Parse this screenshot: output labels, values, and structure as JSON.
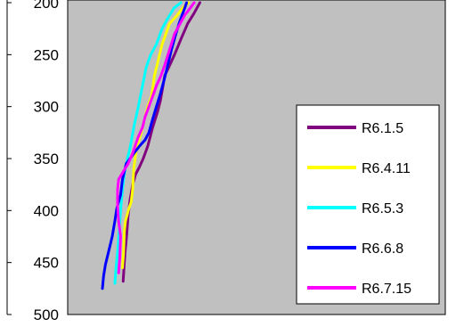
{
  "chart_data": {
    "type": "line",
    "title": "",
    "xlabel": "",
    "ylabel": "",
    "y_axis": {
      "reversed": true,
      "visible_range": [
        200,
        500
      ],
      "ticks": [
        200,
        250,
        300,
        350,
        400,
        450,
        500
      ],
      "tick_labels": [
        "200",
        "250",
        "300",
        "350",
        "400",
        "450",
        "500"
      ]
    },
    "x_axis": {
      "tick_labels_visible": false,
      "unit": "relative 0-1 across plot width",
      "visible_range": [
        0,
        1
      ]
    },
    "grid": false,
    "plot_background": "#c0c0c0",
    "legend": {
      "placement": "bottom-right inside plot",
      "entries": [
        "R6.1.5",
        "R6.4.11",
        "R6.5.3",
        "R6.6.8",
        "R6.7.15"
      ]
    },
    "series": [
      {
        "name": "R6.1.5",
        "color": "#800080",
        "points": [
          [
            0.147,
            468
          ],
          [
            0.149,
            455
          ],
          [
            0.152,
            440
          ],
          [
            0.156,
            425
          ],
          [
            0.16,
            405
          ],
          [
            0.165,
            390
          ],
          [
            0.172,
            375
          ],
          [
            0.18,
            365
          ],
          [
            0.19,
            358
          ],
          [
            0.2,
            350
          ],
          [
            0.212,
            338
          ],
          [
            0.225,
            320
          ],
          [
            0.238,
            305
          ],
          [
            0.245,
            295
          ],
          [
            0.25,
            285
          ],
          [
            0.257,
            270
          ],
          [
            0.268,
            262
          ],
          [
            0.283,
            250
          ],
          [
            0.3,
            235
          ],
          [
            0.318,
            220
          ],
          [
            0.335,
            210
          ],
          [
            0.35,
            200
          ]
        ]
      },
      {
        "name": "R6.4.11",
        "color": "#ffff00",
        "points": [
          [
            0.145,
            455
          ],
          [
            0.148,
            440
          ],
          [
            0.15,
            420
          ],
          [
            0.153,
            410
          ],
          [
            0.162,
            398
          ],
          [
            0.168,
            392
          ],
          [
            0.172,
            380
          ],
          [
            0.175,
            360
          ],
          [
            0.182,
            340
          ],
          [
            0.195,
            325
          ],
          [
            0.205,
            310
          ],
          [
            0.212,
            300
          ],
          [
            0.222,
            290
          ],
          [
            0.23,
            270
          ],
          [
            0.24,
            255
          ],
          [
            0.25,
            240
          ],
          [
            0.262,
            228
          ],
          [
            0.27,
            220
          ],
          [
            0.288,
            213
          ],
          [
            0.305,
            205
          ],
          [
            0.32,
            200
          ]
        ]
      },
      {
        "name": "R6.5.3",
        "color": "#00ffff",
        "points": [
          [
            0.125,
            470
          ],
          [
            0.128,
            455
          ],
          [
            0.132,
            440
          ],
          [
            0.136,
            420
          ],
          [
            0.14,
            400
          ],
          [
            0.145,
            380
          ],
          [
            0.15,
            365
          ],
          [
            0.158,
            350
          ],
          [
            0.165,
            340
          ],
          [
            0.175,
            320
          ],
          [
            0.187,
            300
          ],
          [
            0.198,
            280
          ],
          [
            0.208,
            262
          ],
          [
            0.22,
            250
          ],
          [
            0.235,
            240
          ],
          [
            0.25,
            225
          ],
          [
            0.265,
            215
          ],
          [
            0.282,
            205
          ],
          [
            0.3,
            200
          ]
        ]
      },
      {
        "name": "R6.6.8",
        "color": "#0000ff",
        "points": [
          [
            0.092,
            475
          ],
          [
            0.095,
            463
          ],
          [
            0.1,
            452
          ],
          [
            0.108,
            440
          ],
          [
            0.118,
            425
          ],
          [
            0.125,
            410
          ],
          [
            0.13,
            398
          ],
          [
            0.14,
            385
          ],
          [
            0.145,
            370
          ],
          [
            0.155,
            355
          ],
          [
            0.165,
            350
          ],
          [
            0.175,
            345
          ],
          [
            0.19,
            338
          ],
          [
            0.205,
            332
          ],
          [
            0.215,
            325
          ],
          [
            0.225,
            312
          ],
          [
            0.235,
            300
          ],
          [
            0.245,
            288
          ],
          [
            0.255,
            275
          ],
          [
            0.265,
            260
          ],
          [
            0.275,
            245
          ],
          [
            0.285,
            232
          ],
          [
            0.295,
            220
          ],
          [
            0.305,
            210
          ],
          [
            0.315,
            200
          ]
        ]
      },
      {
        "name": "R6.7.15",
        "color": "#ff00ff",
        "points": [
          [
            0.135,
            460
          ],
          [
            0.138,
            445
          ],
          [
            0.14,
            425
          ],
          [
            0.135,
            410
          ],
          [
            0.132,
            395
          ],
          [
            0.132,
            380
          ],
          [
            0.135,
            370
          ],
          [
            0.148,
            362
          ],
          [
            0.16,
            355
          ],
          [
            0.172,
            345
          ],
          [
            0.186,
            330
          ],
          [
            0.198,
            320
          ],
          [
            0.205,
            310
          ],
          [
            0.215,
            300
          ],
          [
            0.225,
            290
          ],
          [
            0.235,
            280
          ],
          [
            0.245,
            272
          ],
          [
            0.257,
            260
          ],
          [
            0.27,
            245
          ],
          [
            0.283,
            230
          ],
          [
            0.298,
            220
          ],
          [
            0.31,
            212
          ],
          [
            0.325,
            205
          ],
          [
            0.335,
            200
          ]
        ]
      }
    ]
  }
}
